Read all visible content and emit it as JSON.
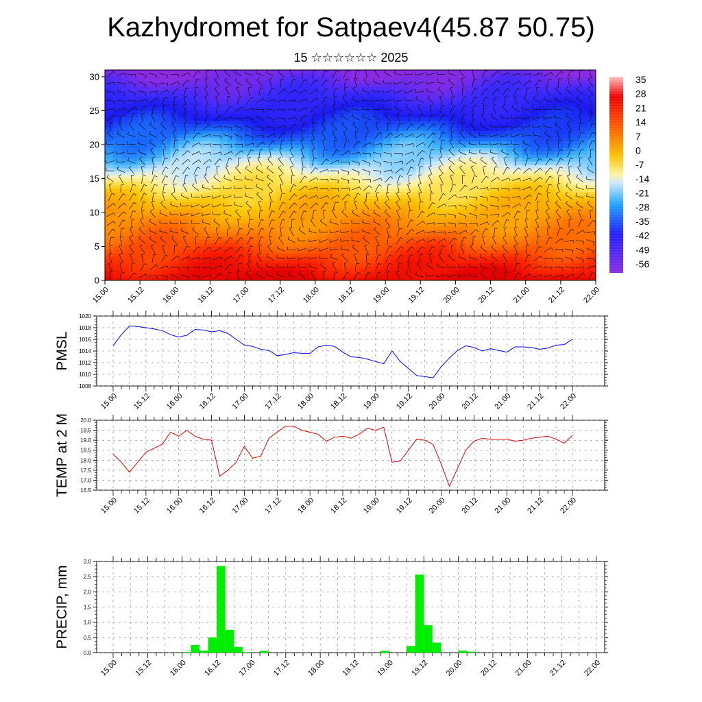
{
  "title": "Kazhydromet for Satpaev4(45.87 50.75)",
  "subtitle": "15 ☆☆☆☆☆☆ 2025",
  "chart_data": [
    {
      "type": "heatmap",
      "name": "upper-air",
      "ylim": [
        0,
        31
      ],
      "yticks": [
        "0",
        "5",
        "10",
        "15",
        "20",
        "25",
        "30"
      ],
      "xticks": [
        "15.00",
        "15.12",
        "16.00",
        "16.12",
        "17.00",
        "17.12",
        "18.00",
        "18.12",
        "19.00",
        "19.12",
        "20.00",
        "20.12",
        "21.00",
        "21.12",
        "22.00"
      ],
      "colorbar_labels": [
        "35",
        "28",
        "21",
        "14",
        "7",
        "0",
        "-7",
        "-14",
        "-21",
        "-28",
        "-35",
        "-42",
        "-49",
        "-56"
      ],
      "colorbar_range": [
        -63,
        42
      ],
      "colors": [
        "#8a2be2",
        "#2020ff",
        "#1fa3ff",
        "#cfeaff",
        "#fff3a0",
        "#ffc000",
        "#ff6a00",
        "#f00000",
        "#ffc0c0"
      ],
      "wind_barbs": true
    },
    {
      "type": "line",
      "ylabel": "PMSL",
      "ylim": [
        1008,
        1020
      ],
      "yticks": [
        "1008",
        "1010",
        "1012",
        "1014",
        "1016",
        "1018",
        "1020"
      ],
      "xticks": [
        "15.00",
        "15.12",
        "16.00",
        "16.12",
        "17.00",
        "17.12",
        "18.00",
        "18.12",
        "19.00",
        "19.12",
        "20.00",
        "20.12",
        "21.00",
        "21.12",
        "22.00"
      ],
      "x_hours": [
        0,
        3,
        6,
        9,
        12,
        15,
        18,
        21,
        24,
        27,
        30,
        33,
        36,
        39,
        42,
        45,
        48,
        51,
        54,
        57,
        60,
        63,
        66,
        69,
        72,
        75,
        78,
        81,
        84,
        87,
        90,
        93,
        96,
        99,
        102,
        105,
        108,
        111,
        114,
        117,
        120,
        123,
        126,
        129,
        132,
        135,
        138,
        141,
        144,
        147,
        150,
        153,
        156,
        159,
        162,
        165,
        168
      ],
      "values": [
        1014.9,
        1016.8,
        1018.3,
        1018.2,
        1018.0,
        1017.8,
        1017.5,
        1016.8,
        1016.4,
        1016.7,
        1017.7,
        1017.6,
        1017.3,
        1017.5,
        1017.0,
        1016.0,
        1015.0,
        1014.8,
        1014.3,
        1014.1,
        1013.2,
        1013.4,
        1013.7,
        1013.6,
        1013.6,
        1014.7,
        1015.0,
        1014.8,
        1013.8,
        1013.0,
        1012.9,
        1012.6,
        1012.2,
        1011.8,
        1014.0,
        1012.2,
        1011.0,
        1009.8,
        1009.6,
        1009.4,
        1011.3,
        1012.8,
        1014.1,
        1014.9,
        1014.6,
        1014.0,
        1014.4,
        1014.1,
        1013.8,
        1014.7,
        1014.7,
        1014.6,
        1014.3,
        1014.5,
        1015.0,
        1015.1,
        1016.0
      ],
      "color": "#0000ff"
    },
    {
      "type": "line",
      "ylabel": "TEMP at 2 M",
      "ylim": [
        16.5,
        20.0
      ],
      "yticks": [
        "16.5",
        "17.0",
        "17.5",
        "18.0",
        "18.5",
        "19.0",
        "19.5",
        "20.0"
      ],
      "xticks": [
        "15.00",
        "15.12",
        "16.00",
        "16.12",
        "17.00",
        "17.12",
        "18.00",
        "18.12",
        "19.00",
        "19.12",
        "20.00",
        "20.12",
        "21.00",
        "21.12",
        "22.00"
      ],
      "x_hours": [
        0,
        3,
        6,
        9,
        12,
        15,
        18,
        21,
        24,
        27,
        30,
        33,
        36,
        39,
        42,
        45,
        48,
        51,
        54,
        57,
        60,
        63,
        66,
        69,
        72,
        75,
        78,
        81,
        84,
        87,
        90,
        93,
        96,
        99,
        102,
        105,
        108,
        111,
        114,
        117,
        120,
        123,
        126,
        129,
        132,
        135,
        138,
        141,
        144,
        147,
        150,
        153,
        156,
        159,
        162,
        165,
        168
      ],
      "values": [
        18.3,
        17.9,
        17.4,
        17.9,
        18.4,
        18.6,
        18.8,
        19.4,
        19.2,
        19.5,
        19.2,
        19.05,
        19.0,
        17.2,
        17.5,
        17.9,
        18.7,
        18.1,
        18.2,
        19.1,
        19.4,
        19.7,
        19.7,
        19.5,
        19.4,
        19.3,
        18.95,
        19.15,
        19.2,
        19.1,
        19.3,
        19.6,
        19.5,
        19.65,
        17.9,
        17.95,
        18.5,
        19.05,
        19.0,
        18.8,
        17.8,
        16.7,
        17.6,
        18.5,
        18.95,
        19.1,
        19.05,
        19.05,
        19.05,
        18.95,
        19.0,
        19.1,
        19.15,
        19.2,
        19.05,
        18.85,
        19.25
      ],
      "color": "#e00000"
    },
    {
      "type": "bar",
      "ylabel": "PRECIP, mm",
      "ylim": [
        0,
        3.0
      ],
      "yticks": [
        "0.0",
        "0.5",
        "1.0",
        "1.5",
        "2.0",
        "2.5",
        "3.0"
      ],
      "xticks": [
        "15.00",
        "15.12",
        "16.00",
        "16.12",
        "17.00",
        "17.12",
        "18.00",
        "18.12",
        "19.00",
        "19.12",
        "20.00",
        "20.12",
        "21.00",
        "21.12",
        "22.00"
      ],
      "bars": [
        {
          "start_hour": 24,
          "value": 0.02
        },
        {
          "start_hour": 27,
          "value": 0.25
        },
        {
          "start_hour": 30,
          "value": 0.07
        },
        {
          "start_hour": 33,
          "value": 0.5
        },
        {
          "start_hour": 36,
          "value": 2.85
        },
        {
          "start_hour": 39,
          "value": 0.75
        },
        {
          "start_hour": 42,
          "value": 0.18
        },
        {
          "start_hour": 45,
          "value": 0.02
        },
        {
          "start_hour": 51,
          "value": 0.06
        },
        {
          "start_hour": 93,
          "value": 0.06
        },
        {
          "start_hour": 102,
          "value": 0.22
        },
        {
          "start_hour": 105,
          "value": 2.57
        },
        {
          "start_hour": 108,
          "value": 0.9
        },
        {
          "start_hour": 111,
          "value": 0.33
        },
        {
          "start_hour": 120,
          "value": 0.07
        },
        {
          "start_hour": 123,
          "value": 0.03
        }
      ],
      "color": "#00ee00"
    }
  ]
}
